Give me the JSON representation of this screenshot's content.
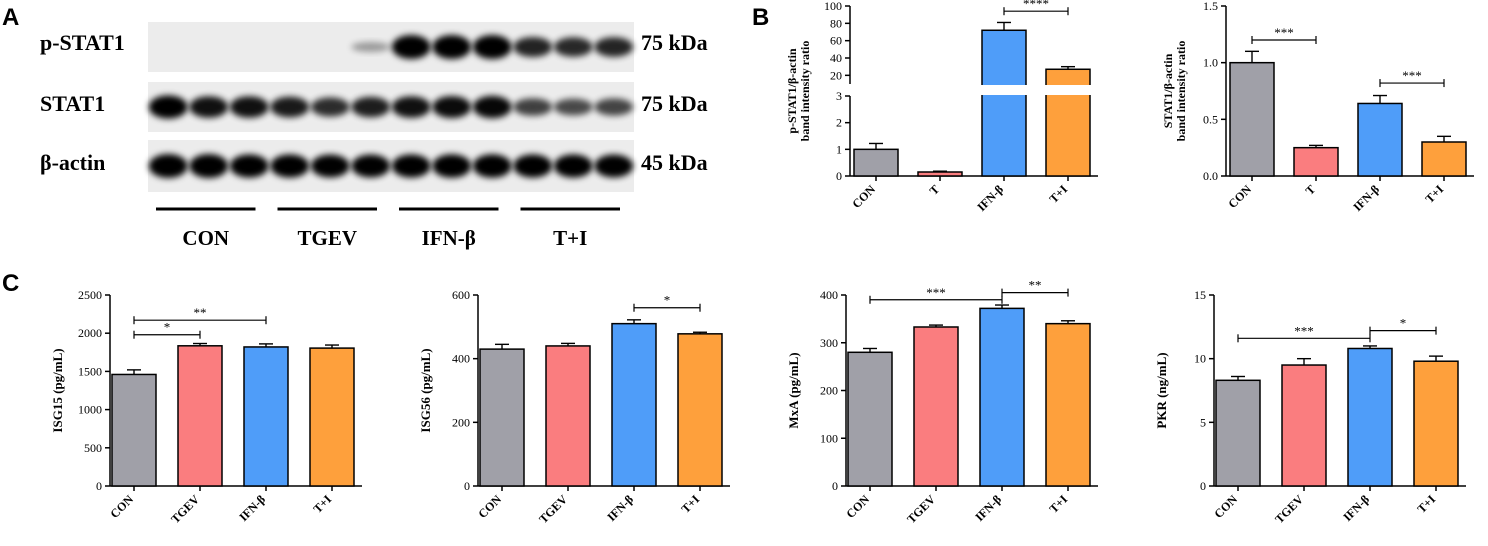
{
  "panel_labels": {
    "a": "A",
    "b": "B",
    "c": "C"
  },
  "western_blot": {
    "rows": [
      {
        "protein": "p-STAT1",
        "size": "75 kDa",
        "intensity": [
          0,
          0,
          0,
          0,
          0,
          0.12,
          1,
          1,
          1,
          0.75,
          0.72,
          0.74
        ]
      },
      {
        "protein": "STAT1",
        "size": "75 kDa",
        "intensity": [
          0.95,
          0.85,
          0.85,
          0.8,
          0.7,
          0.78,
          0.85,
          0.88,
          0.9,
          0.6,
          0.55,
          0.58
        ]
      },
      {
        "protein": "β-actin",
        "size": "45 kDa",
        "intensity": [
          1,
          1,
          0.95,
          0.95,
          0.93,
          0.93,
          0.95,
          0.97,
          0.97,
          0.95,
          0.95,
          0.93
        ]
      }
    ],
    "groups": [
      "CON",
      "TGEV",
      "IFN-β",
      "T+I"
    ]
  },
  "colors": {
    "CON": "#a0a0a8",
    "TGEV": "#fa7d7f",
    "IFN": "#4f9df9",
    "TI": "#fea03c"
  },
  "chart_data": [
    {
      "id": "b1",
      "type": "bar",
      "ylabel_lines": [
        "p-STAT1/β-actin",
        "band intensity ratio"
      ],
      "categories": [
        "CON",
        "T",
        "IFN-β",
        "T+I"
      ],
      "values": [
        1.0,
        0.15,
        72,
        27
      ],
      "errors": [
        0.22,
        0.03,
        9,
        3
      ],
      "color_keys": [
        "CON",
        "TGEV",
        "IFN",
        "TI"
      ],
      "broken_axis": {
        "lower": [
          0,
          3
        ],
        "upper": [
          10,
          100
        ]
      },
      "yticks_lower": [
        0,
        1,
        2,
        3
      ],
      "yticks_upper": [
        20,
        40,
        60,
        80,
        100
      ],
      "sig": [
        {
          "from": 2,
          "to": 3,
          "label": "****",
          "y": 94
        }
      ]
    },
    {
      "id": "b2",
      "type": "bar",
      "ylabel_lines": [
        "STAT1/β-actin",
        "band intensity ratio"
      ],
      "categories": [
        "CON",
        "T",
        "IFN-β",
        "T+I"
      ],
      "values": [
        1.0,
        0.25,
        0.64,
        0.3
      ],
      "errors": [
        0.1,
        0.02,
        0.07,
        0.05
      ],
      "color_keys": [
        "CON",
        "TGEV",
        "IFN",
        "TI"
      ],
      "ylim": [
        0,
        1.5
      ],
      "yticks": [
        0.0,
        0.5,
        1.0,
        1.5
      ],
      "tick_decimals": 1,
      "sig": [
        {
          "from": 0,
          "to": 1,
          "label": "***",
          "y": 1.2
        },
        {
          "from": 2,
          "to": 3,
          "label": "***",
          "y": 0.82
        }
      ]
    },
    {
      "id": "c1",
      "type": "bar",
      "ylabel": "ISG15 (pg/mL)",
      "categories": [
        "CON",
        "TGEV",
        "IFN-β",
        "T+I"
      ],
      "values": [
        1460,
        1835,
        1820,
        1805
      ],
      "errors": [
        60,
        30,
        40,
        40
      ],
      "color_keys": [
        "CON",
        "TGEV",
        "IFN",
        "TI"
      ],
      "ylim": [
        0,
        2500
      ],
      "yticks": [
        0,
        500,
        1000,
        1500,
        2000,
        2500
      ],
      "sig": [
        {
          "from": 0,
          "to": 1,
          "label": "*",
          "y": 1980
        },
        {
          "from": 0,
          "to": 2,
          "label": "**",
          "y": 2170
        }
      ]
    },
    {
      "id": "c2",
      "type": "bar",
      "ylabel": "ISG56 (pg/mL)",
      "categories": [
        "CON",
        "TGEV",
        "IFN-β",
        "T+I"
      ],
      "values": [
        430,
        440,
        510,
        478
      ],
      "errors": [
        15,
        8,
        12,
        5
      ],
      "color_keys": [
        "CON",
        "TGEV",
        "IFN",
        "TI"
      ],
      "ylim": [
        0,
        600
      ],
      "yticks": [
        0,
        200,
        400,
        600
      ],
      "sig": [
        {
          "from": 2,
          "to": 3,
          "label": "*",
          "y": 560
        }
      ]
    },
    {
      "id": "c3",
      "type": "bar",
      "ylabel": "MxA (pg/mL)",
      "categories": [
        "CON",
        "TGEV",
        "IFN-β",
        "T+I"
      ],
      "values": [
        280,
        333,
        372,
        340
      ],
      "errors": [
        8,
        4,
        7,
        6
      ],
      "color_keys": [
        "CON",
        "TGEV",
        "IFN",
        "TI"
      ],
      "ylim": [
        0,
        400
      ],
      "yticks": [
        0,
        100,
        200,
        300,
        400
      ],
      "sig": [
        {
          "from": 0,
          "to": 2,
          "label": "***",
          "y": 390
        },
        {
          "from": 2,
          "to": 3,
          "label": "**",
          "y": 405
        }
      ]
    },
    {
      "id": "c4",
      "type": "bar",
      "ylabel": "PKR (ng/mL)",
      "categories": [
        "CON",
        "TGEV",
        "IFN-β",
        "T+I"
      ],
      "values": [
        8.3,
        9.5,
        10.8,
        9.8
      ],
      "errors": [
        0.3,
        0.5,
        0.2,
        0.4
      ],
      "color_keys": [
        "CON",
        "TGEV",
        "IFN",
        "TI"
      ],
      "ylim": [
        0,
        15
      ],
      "yticks": [
        0,
        5,
        10,
        15
      ],
      "sig": [
        {
          "from": 0,
          "to": 2,
          "label": "***",
          "y": 11.6
        },
        {
          "from": 2,
          "to": 3,
          "label": "*",
          "y": 12.2
        }
      ]
    }
  ]
}
